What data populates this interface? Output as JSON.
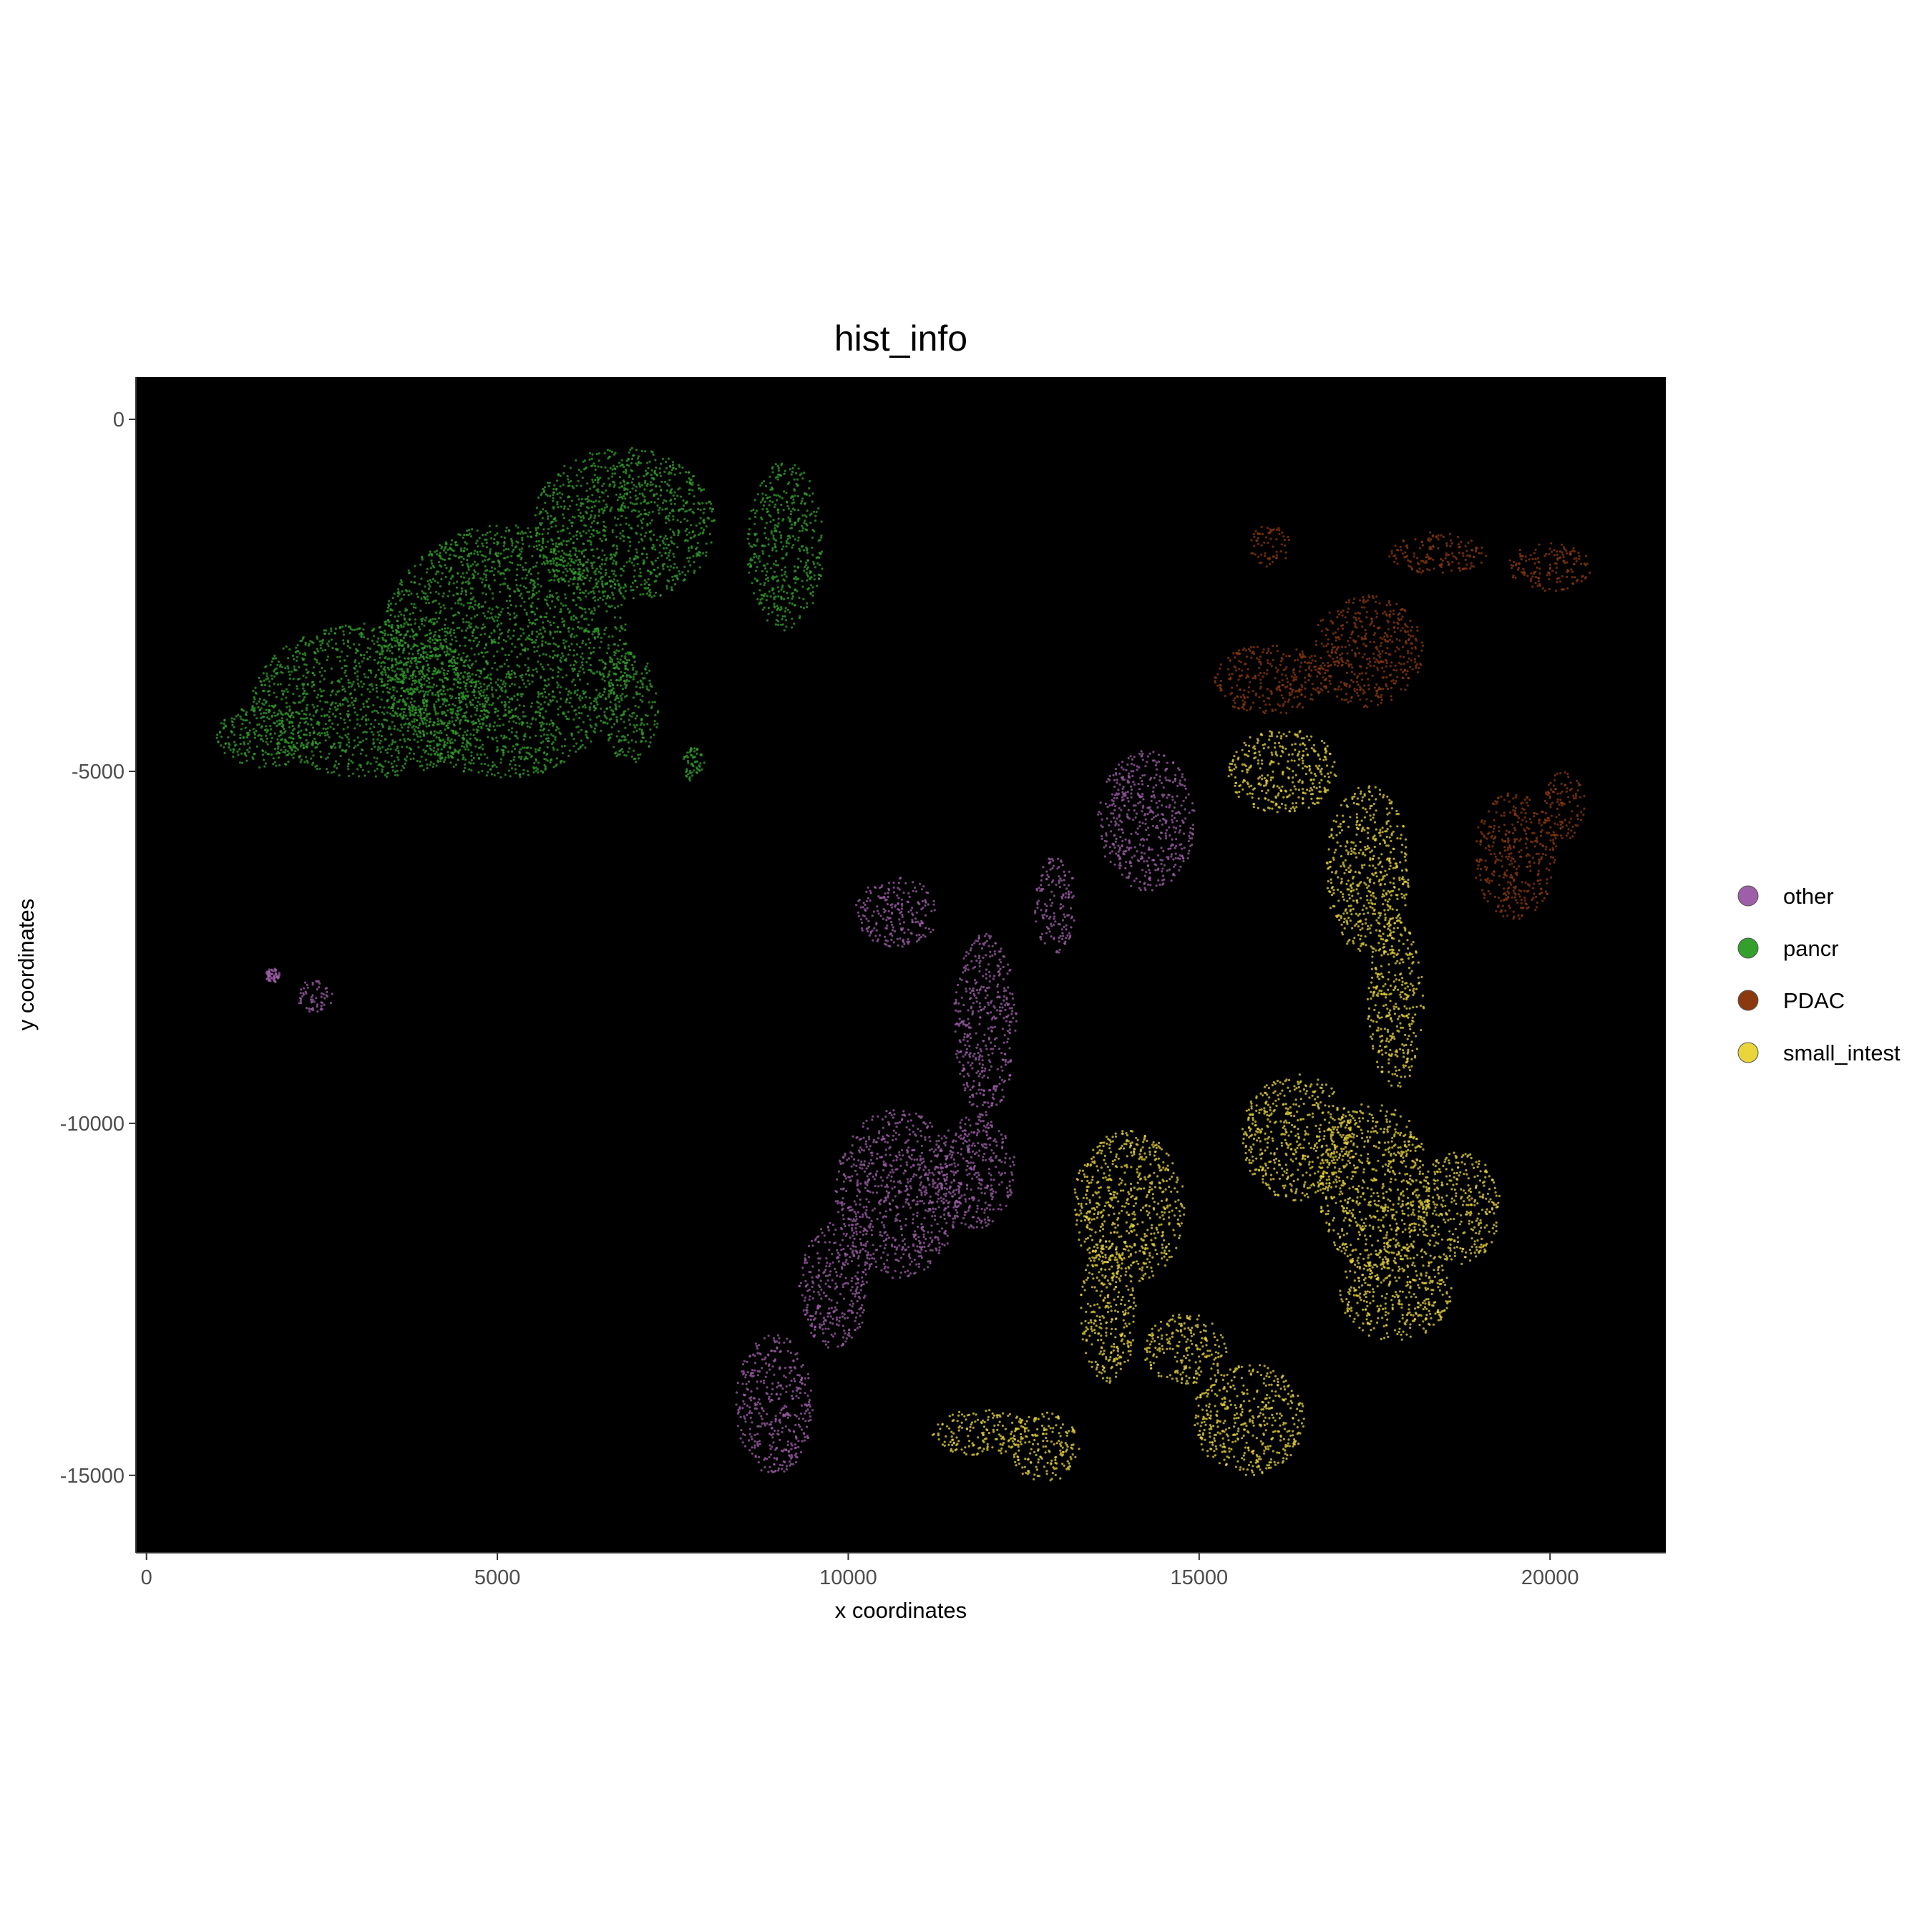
{
  "chart_data": {
    "type": "scatter",
    "title": "hist_info",
    "xlabel": "x coordinates",
    "ylabel": "y coordinates",
    "xlim": [
      -150,
      21650
    ],
    "ylim": [
      -16100,
      600
    ],
    "x_ticks": [
      0,
      5000,
      10000,
      15000,
      20000
    ],
    "y_ticks": [
      0,
      -5000,
      -10000,
      -15000
    ],
    "x_tick_labels": [
      "0",
      "5000",
      "10000",
      "15000",
      "20000"
    ],
    "y_tick_labels": [
      "0",
      "-5000",
      "-10000",
      "-15000"
    ],
    "panel_background": "#000000",
    "grid": false,
    "legend_position": "right",
    "series": [
      {
        "name": "other",
        "color": "#9E5FA8",
        "regions": [
          {
            "cx": 14250,
            "cy": -5700,
            "rx": 700,
            "ry": 1000
          },
          {
            "cx": 10700,
            "cy": -7000,
            "rx": 600,
            "ry": 500
          },
          {
            "cx": 11950,
            "cy": -8600,
            "rx": 450,
            "ry": 1300
          },
          {
            "cx": 12950,
            "cy": -6900,
            "rx": 300,
            "ry": 700
          },
          {
            "cx": 10700,
            "cy": -11000,
            "rx": 900,
            "ry": 1200
          },
          {
            "cx": 11800,
            "cy": -10700,
            "rx": 600,
            "ry": 800
          },
          {
            "cx": 9800,
            "cy": -12300,
            "rx": 500,
            "ry": 900
          },
          {
            "cx": 8950,
            "cy": -14000,
            "rx": 550,
            "ry": 1000
          },
          {
            "cx": 2400,
            "cy": -8200,
            "rx": 250,
            "ry": 250
          },
          {
            "cx": 1800,
            "cy": -7900,
            "rx": 100,
            "ry": 100
          }
        ]
      },
      {
        "name": "pancr",
        "color": "#33A02C",
        "regions": [
          {
            "cx": 3200,
            "cy": -4000,
            "rx": 1700,
            "ry": 1100
          },
          {
            "cx": 5100,
            "cy": -3300,
            "rx": 1800,
            "ry": 1800
          },
          {
            "cx": 6800,
            "cy": -1500,
            "rx": 1300,
            "ry": 1100
          },
          {
            "cx": 9100,
            "cy": -1800,
            "rx": 550,
            "ry": 1200
          },
          {
            "cx": 6900,
            "cy": -4100,
            "rx": 400,
            "ry": 800
          },
          {
            "cx": 1700,
            "cy": -4500,
            "rx": 700,
            "ry": 450
          },
          {
            "cx": 7800,
            "cy": -4900,
            "rx": 150,
            "ry": 250
          }
        ]
      },
      {
        "name": "PDAC",
        "color": "#8B3A0F",
        "regions": [
          {
            "cx": 17400,
            "cy": -3300,
            "rx": 800,
            "ry": 800
          },
          {
            "cx": 16000,
            "cy": -3700,
            "rx": 800,
            "ry": 500
          },
          {
            "cx": 16000,
            "cy": -1800,
            "rx": 300,
            "ry": 300
          },
          {
            "cx": 18400,
            "cy": -1900,
            "rx": 700,
            "ry": 300
          },
          {
            "cx": 20000,
            "cy": -2100,
            "rx": 600,
            "ry": 350
          },
          {
            "cx": 19500,
            "cy": -6200,
            "rx": 600,
            "ry": 900
          },
          {
            "cx": 20200,
            "cy": -5500,
            "rx": 300,
            "ry": 500
          }
        ]
      },
      {
        "name": "small_intest",
        "color": "#E8D63A",
        "regions": [
          {
            "cx": 16200,
            "cy": -5000,
            "rx": 800,
            "ry": 600
          },
          {
            "cx": 17400,
            "cy": -6400,
            "rx": 600,
            "ry": 1200
          },
          {
            "cx": 17800,
            "cy": -8300,
            "rx": 400,
            "ry": 1200
          },
          {
            "cx": 16400,
            "cy": -10200,
            "rx": 800,
            "ry": 900
          },
          {
            "cx": 17500,
            "cy": -10900,
            "rx": 800,
            "ry": 1200
          },
          {
            "cx": 18700,
            "cy": -11200,
            "rx": 600,
            "ry": 800
          },
          {
            "cx": 17800,
            "cy": -12400,
            "rx": 800,
            "ry": 700
          },
          {
            "cx": 14000,
            "cy": -11200,
            "rx": 800,
            "ry": 1100
          },
          {
            "cx": 13700,
            "cy": -12700,
            "rx": 400,
            "ry": 1000
          },
          {
            "cx": 14800,
            "cy": -13200,
            "rx": 600,
            "ry": 500
          },
          {
            "cx": 15700,
            "cy": -14200,
            "rx": 800,
            "ry": 800
          },
          {
            "cx": 11900,
            "cy": -14400,
            "rx": 700,
            "ry": 350
          },
          {
            "cx": 12800,
            "cy": -14600,
            "rx": 500,
            "ry": 500
          }
        ]
      }
    ]
  },
  "legend": {
    "items": [
      {
        "label": "other",
        "color": "#9E5FA8"
      },
      {
        "label": "pancr",
        "color": "#33A02C"
      },
      {
        "label": "PDAC",
        "color": "#8B3A0F"
      },
      {
        "label": "small_intest",
        "color": "#E8D63A"
      }
    ]
  }
}
